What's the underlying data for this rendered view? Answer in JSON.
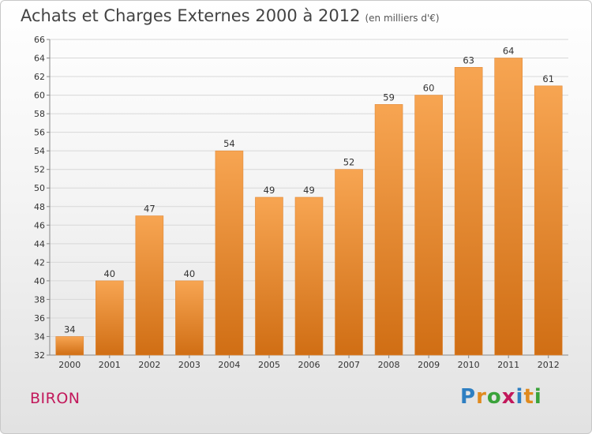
{
  "header": {
    "title": "Achats et Charges Externes 2000 à 2012",
    "subtitle": "(en milliers d'€)"
  },
  "commune": "BIRON",
  "logo": {
    "text": "Proxiti",
    "letters": [
      {
        "ch": "P",
        "color": "#2e7fc2"
      },
      {
        "ch": "r",
        "color": "#e08a1e"
      },
      {
        "ch": "o",
        "color": "#3aa23a"
      },
      {
        "ch": "x",
        "color": "#c2185b"
      },
      {
        "ch": "i",
        "color": "#2e7fc2"
      },
      {
        "ch": "t",
        "color": "#e08a1e"
      },
      {
        "ch": "i",
        "color": "#3aa23a"
      }
    ]
  },
  "colors": {
    "bar_top": "#f7a552",
    "bar_bottom": "#d06e14",
    "grid": "#d8d8d8"
  },
  "chart_data": {
    "type": "bar",
    "title": "Achats et Charges Externes 2000 à 2012",
    "subtitle": "(en milliers d'€)",
    "categories": [
      "2000",
      "2001",
      "2002",
      "2003",
      "2004",
      "2005",
      "2006",
      "2007",
      "2008",
      "2009",
      "2010",
      "2011",
      "2012"
    ],
    "values": [
      34,
      40,
      47,
      40,
      54,
      49,
      49,
      52,
      59,
      60,
      63,
      64,
      61
    ],
    "ylim": [
      32,
      66
    ],
    "yticks": [
      32,
      34,
      36,
      38,
      40,
      42,
      44,
      46,
      48,
      50,
      52,
      54,
      56,
      58,
      60,
      62,
      64,
      66
    ],
    "grid": true,
    "xlabel": "",
    "ylabel": ""
  }
}
